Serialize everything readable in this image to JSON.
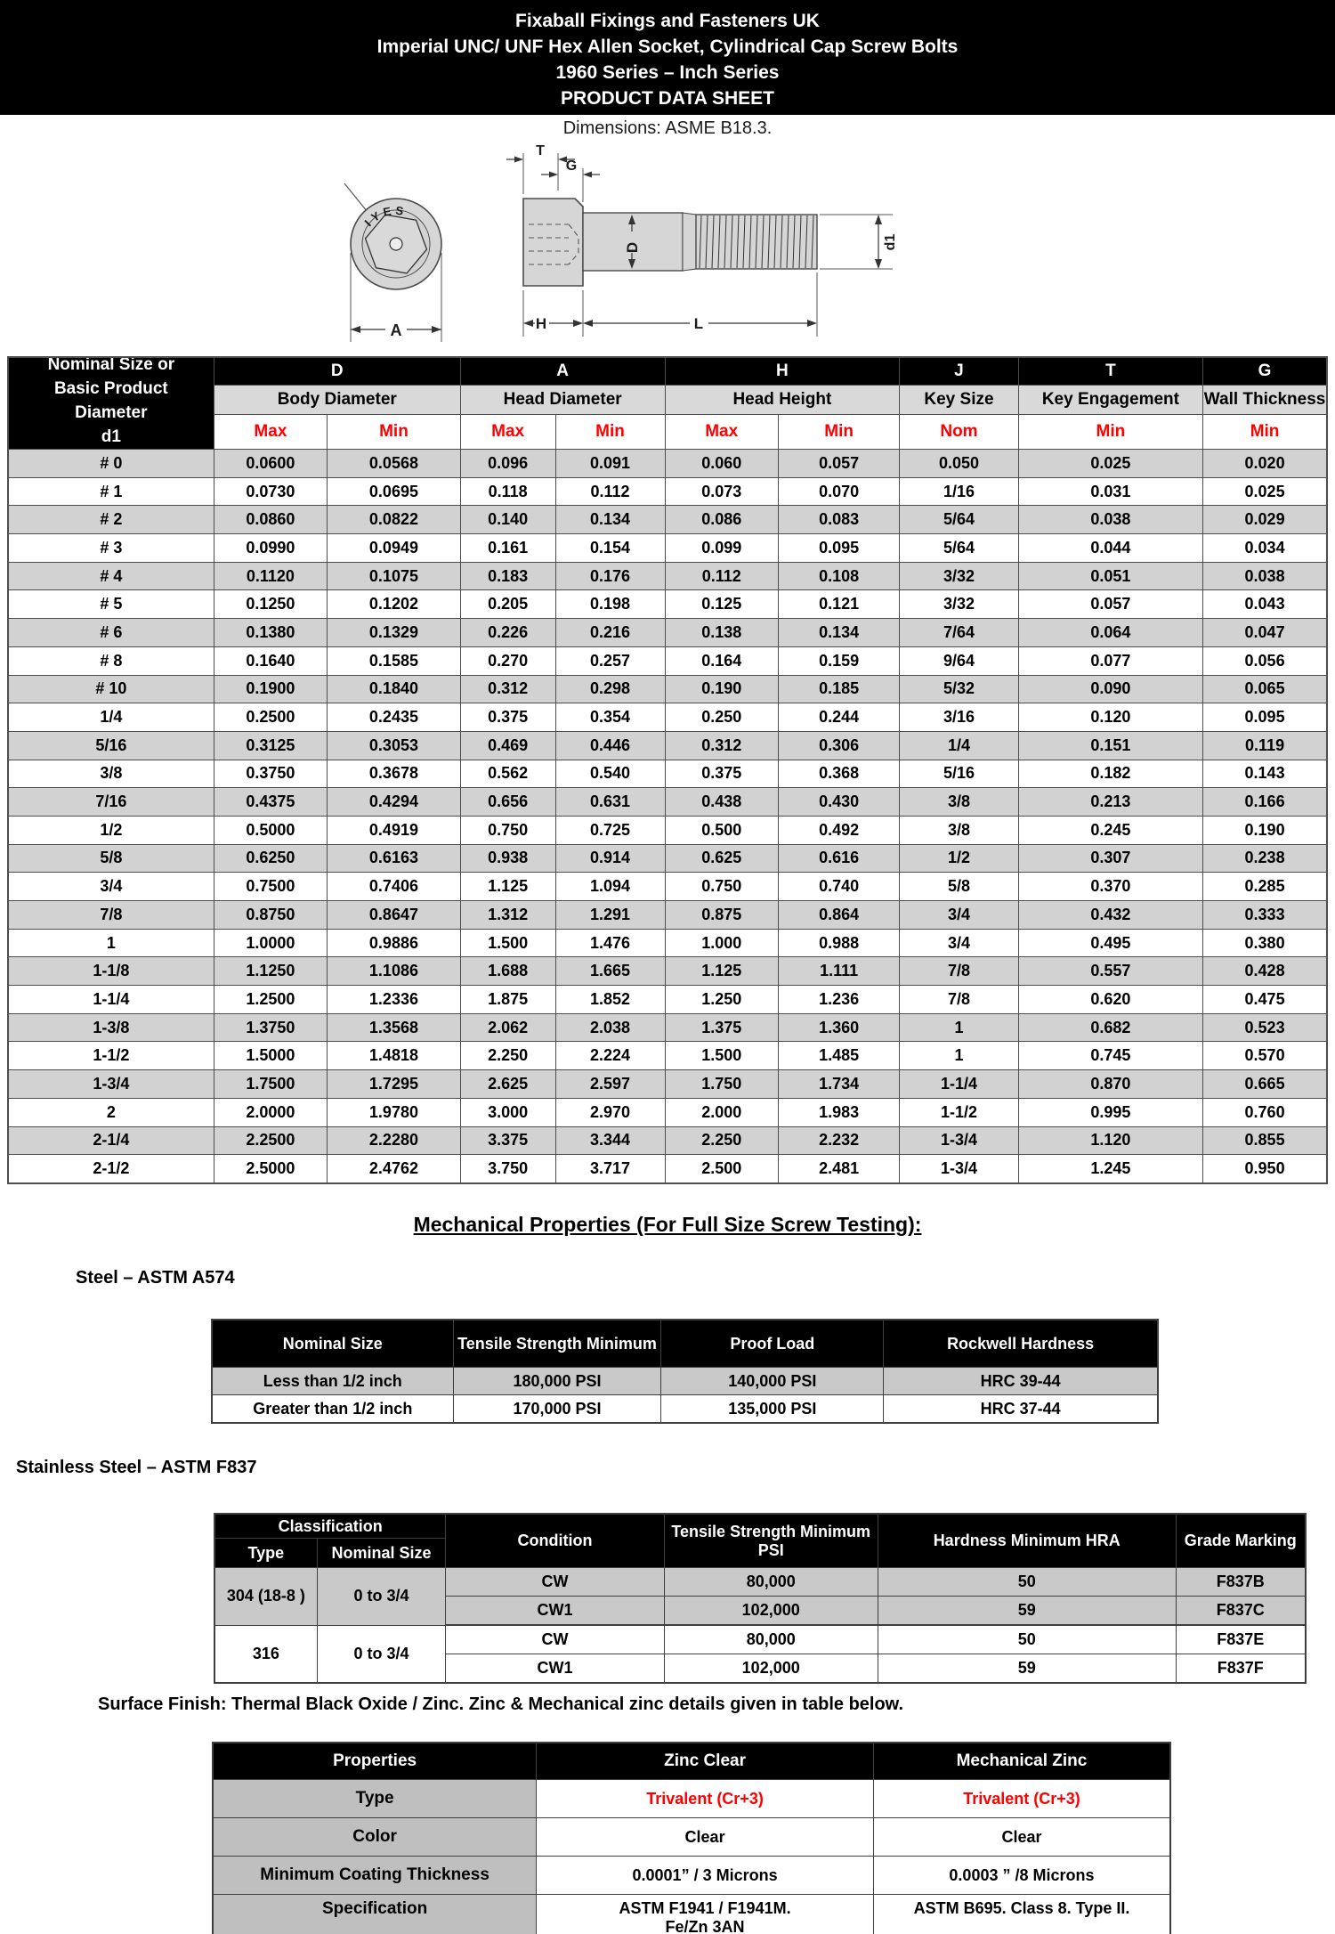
{
  "header": {
    "line1": "Fixaball Fixings and Fasteners UK",
    "line2": "Imperial UNC/ UNF Hex Allen Socket, Cylindrical Cap Screw Bolts",
    "line3": "1960 Series – Inch Series",
    "line4": "PRODUCT DATA SHEET",
    "dimensions_note": "Dimensions: ASME B18.3."
  },
  "drawing": {
    "engraving": "IYES",
    "labels": {
      "a": "A",
      "t": "T",
      "g": "G",
      "d": "D",
      "d1": "d1",
      "h": "H",
      "l": "L"
    }
  },
  "dimension_table": {
    "first_col_header": "Nominal Size or\nBasic Product\nDiameter\nd1",
    "col_letters": [
      "D",
      "A",
      "H",
      "J",
      "T",
      "G"
    ],
    "col_names": [
      "Body Diameter",
      "Head Diameter",
      "Head Height",
      "Key Size",
      "Key Engagement",
      "Wall Thickness"
    ],
    "sub_headers": [
      "Max",
      "Min",
      "Max",
      "Min",
      "Max",
      "Min",
      "Nom",
      "Min",
      "Min"
    ],
    "rows": [
      [
        "# 0",
        "0.0600",
        "0.0568",
        "0.096",
        "0.091",
        "0.060",
        "0.057",
        "0.050",
        "0.025",
        "0.020"
      ],
      [
        "# 1",
        "0.0730",
        "0.0695",
        "0.118",
        "0.112",
        "0.073",
        "0.070",
        "1/16",
        "0.031",
        "0.025"
      ],
      [
        "# 2",
        "0.0860",
        "0.0822",
        "0.140",
        "0.134",
        "0.086",
        "0.083",
        "5/64",
        "0.038",
        "0.029"
      ],
      [
        "# 3",
        "0.0990",
        "0.0949",
        "0.161",
        "0.154",
        "0.099",
        "0.095",
        "5/64",
        "0.044",
        "0.034"
      ],
      [
        "# 4",
        "0.1120",
        "0.1075",
        "0.183",
        "0.176",
        "0.112",
        "0.108",
        "3/32",
        "0.051",
        "0.038"
      ],
      [
        "# 5",
        "0.1250",
        "0.1202",
        "0.205",
        "0.198",
        "0.125",
        "0.121",
        "3/32",
        "0.057",
        "0.043"
      ],
      [
        "# 6",
        "0.1380",
        "0.1329",
        "0.226",
        "0.216",
        "0.138",
        "0.134",
        "7/64",
        "0.064",
        "0.047"
      ],
      [
        "# 8",
        "0.1640",
        "0.1585",
        "0.270",
        "0.257",
        "0.164",
        "0.159",
        "9/64",
        "0.077",
        "0.056"
      ],
      [
        "# 10",
        "0.1900",
        "0.1840",
        "0.312",
        "0.298",
        "0.190",
        "0.185",
        "5/32",
        "0.090",
        "0.065"
      ],
      [
        "1/4",
        "0.2500",
        "0.2435",
        "0.375",
        "0.354",
        "0.250",
        "0.244",
        "3/16",
        "0.120",
        "0.095"
      ],
      [
        "5/16",
        "0.3125",
        "0.3053",
        "0.469",
        "0.446",
        "0.312",
        "0.306",
        "1/4",
        "0.151",
        "0.119"
      ],
      [
        "3/8",
        "0.3750",
        "0.3678",
        "0.562",
        "0.540",
        "0.375",
        "0.368",
        "5/16",
        "0.182",
        "0.143"
      ],
      [
        "7/16",
        "0.4375",
        "0.4294",
        "0.656",
        "0.631",
        "0.438",
        "0.430",
        "3/8",
        "0.213",
        "0.166"
      ],
      [
        "1/2",
        "0.5000",
        "0.4919",
        "0.750",
        "0.725",
        "0.500",
        "0.492",
        "3/8",
        "0.245",
        "0.190"
      ],
      [
        "5/8",
        "0.6250",
        "0.6163",
        "0.938",
        "0.914",
        "0.625",
        "0.616",
        "1/2",
        "0.307",
        "0.238"
      ],
      [
        "3/4",
        "0.7500",
        "0.7406",
        "1.125",
        "1.094",
        "0.750",
        "0.740",
        "5/8",
        "0.370",
        "0.285"
      ],
      [
        "7/8",
        "0.8750",
        "0.8647",
        "1.312",
        "1.291",
        "0.875",
        "0.864",
        "3/4",
        "0.432",
        "0.333"
      ],
      [
        "1",
        "1.0000",
        "0.9886",
        "1.500",
        "1.476",
        "1.000",
        "0.988",
        "3/4",
        "0.495",
        "0.380"
      ],
      [
        "1-1/8",
        "1.1250",
        "1.1086",
        "1.688",
        "1.665",
        "1.125",
        "1.111",
        "7/8",
        "0.557",
        "0.428"
      ],
      [
        "1-1/4",
        "1.2500",
        "1.2336",
        "1.875",
        "1.852",
        "1.250",
        "1.236",
        "7/8",
        "0.620",
        "0.475"
      ],
      [
        "1-3/8",
        "1.3750",
        "1.3568",
        "2.062",
        "2.038",
        "1.375",
        "1.360",
        "1",
        "0.682",
        "0.523"
      ],
      [
        "1-1/2",
        "1.5000",
        "1.4818",
        "2.250",
        "2.224",
        "1.500",
        "1.485",
        "1",
        "0.745",
        "0.570"
      ],
      [
        "1-3/4",
        "1.7500",
        "1.7295",
        "2.625",
        "2.597",
        "1.750",
        "1.734",
        "1-1/4",
        "0.870",
        "0.665"
      ],
      [
        "2",
        "2.0000",
        "1.9780",
        "3.000",
        "2.970",
        "2.000",
        "1.983",
        "1-1/2",
        "0.995",
        "0.760"
      ],
      [
        "2-1/4",
        "2.2500",
        "2.2280",
        "3.375",
        "3.344",
        "2.250",
        "2.232",
        "1-3/4",
        "1.120",
        "0.855"
      ],
      [
        "2-1/2",
        "2.5000",
        "2.4762",
        "3.750",
        "3.717",
        "2.500",
        "2.481",
        "1-3/4",
        "1.245",
        "0.950"
      ]
    ]
  },
  "mechanical": {
    "title": "Mechanical Properties (For Full Size Screw Testing):",
    "steel": {
      "heading": "Steel – ASTM A574",
      "headers": [
        "Nominal Size",
        "Tensile Strength Minimum",
        "Proof Load",
        "Rockwell Hardness"
      ],
      "rows": [
        [
          "Less than 1/2 inch",
          "180,000 PSI",
          "140,000 PSI",
          "HRC 39-44"
        ],
        [
          "Greater than 1/2 inch",
          "170,000 PSI",
          "135,000 PSI",
          "HRC 37-44"
        ]
      ]
    },
    "stainless": {
      "heading": "Stainless Steel – ASTM F837",
      "headers": {
        "classification": "Classification",
        "type": "Type",
        "nominal_size": "Nominal Size",
        "condition": "Condition",
        "tensile": "Tensile Strength Minimum PSI",
        "hardness": "Hardness Minimum HRA",
        "grade": "Grade Marking"
      },
      "rows": [
        {
          "type": "304 (18-8 )",
          "nominal": "0 to 3/4",
          "condition": "CW",
          "tensile": "80,000",
          "hardness": "50",
          "grade": "F837B"
        },
        {
          "condition": "CW1",
          "tensile": "102,000",
          "hardness": "59",
          "grade": "F837C"
        },
        {
          "type": "316",
          "nominal": "0 to 3/4",
          "condition": "CW",
          "tensile": "80,000",
          "hardness": "50",
          "grade": "F837E"
        },
        {
          "condition": "CW1",
          "tensile": "102,000",
          "hardness": "59",
          "grade": "F837F"
        }
      ]
    }
  },
  "surface_finish": {
    "note": "Surface Finish: Thermal Black Oxide / Zinc. Zinc & Mechanical zinc details given in table below.",
    "headers": [
      "Properties",
      "Zinc Clear",
      "Mechanical Zinc"
    ],
    "type_label": "Type",
    "type_zinc": "Trivalent (Cr+3)",
    "type_mech": "Trivalent (Cr+3)",
    "color_label": "Color",
    "color_zinc": "Clear",
    "color_mech": "Clear",
    "coating_label": "Minimum Coating Thickness",
    "coating_zinc": "0.0001” / 3 Microns",
    "coating_mech": "0.0003 ” /8 Microns",
    "spec_label": "Specification",
    "spec_zinc": "ASTM F1941 / F1941M.\nFe/Zn 3AN",
    "spec_mech": "ASTM B695. Class 8. Type II."
  },
  "colors": {
    "banner_bg": "#000000",
    "row_stripe": "#d2d2d2",
    "subheader_gray": "#d9d9d9",
    "small_table_stripe": "#c9c9c9",
    "label_gray": "#bfbfbf",
    "accent_red": "#ff0000"
  }
}
